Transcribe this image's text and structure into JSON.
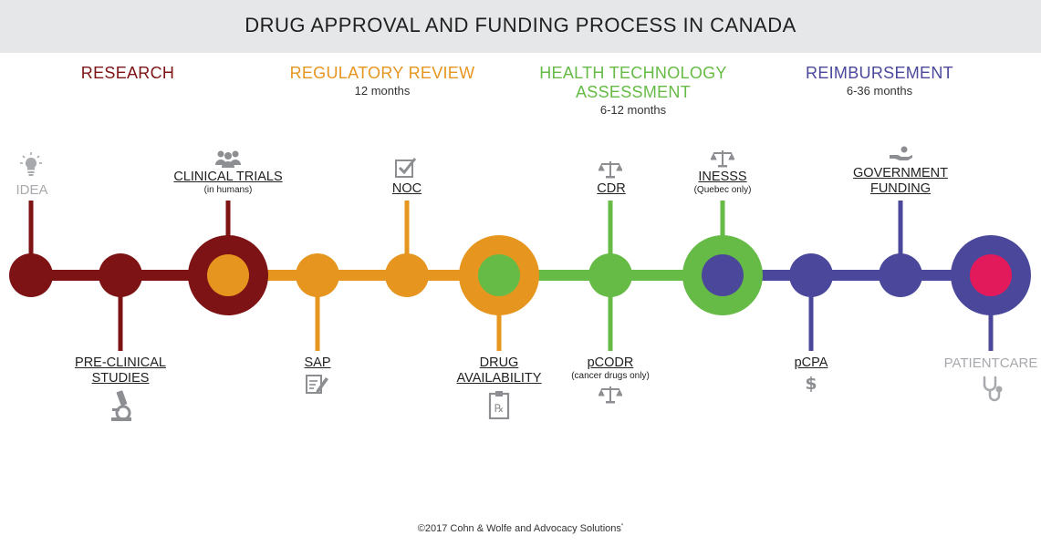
{
  "title": "DRUG APPROVAL AND FUNDING PROCESS IN CANADA",
  "phases": {
    "research": {
      "name": "RESEARCH",
      "color": "#7d1315"
    },
    "regulatory": {
      "name": "REGULATORY REVIEW",
      "duration": "12 months",
      "color": "#e6961f"
    },
    "hta": {
      "name": "HEALTH TECHNOLOGY",
      "name2": "ASSESSMENT",
      "duration": "6-12 months",
      "color": "#65bb46"
    },
    "reimbursement": {
      "name": "REIMBURSEMENT",
      "duration": "6-36 months",
      "color": "#4b489b"
    }
  },
  "steps": {
    "idea": {
      "label": "IDEA",
      "icon": "lightbulb-icon"
    },
    "preclinical": {
      "label1": "PRE-CLINICAL",
      "label2": "STUDIES",
      "icon": "microscope-icon"
    },
    "clinical": {
      "label": "CLINICAL TRIALS",
      "sub": "(in humans)",
      "icon": "people-icon"
    },
    "sap": {
      "label": "SAP",
      "icon": "form-icon"
    },
    "noc": {
      "label": "NOC",
      "icon": "checkbox-icon"
    },
    "drug": {
      "label1": "DRUG",
      "label2": "AVAILABILITY",
      "icon": "prescription-icon"
    },
    "cdr": {
      "label": "CDR",
      "icon": "scales-icon"
    },
    "pcodr": {
      "label": "pCODR",
      "sub": "(cancer drugs only)",
      "icon": "scales-icon"
    },
    "inesss": {
      "label": "INESSS",
      "sub": "(Quebec only)",
      "icon": "scales-icon"
    },
    "pcpa": {
      "label": "pCPA",
      "icon": "dollar-icon"
    },
    "gov": {
      "label1": "GOVERNMENT",
      "label2": "FUNDING",
      "icon": "hand-coin-icon"
    },
    "patient": {
      "label": "PATIENTCARE",
      "icon": "stethoscope-icon"
    }
  },
  "colors": {
    "accent_end": "#e2195a",
    "muted_text": "#a7a9ac",
    "icon_grey": "#8c8e91"
  },
  "footer": {
    "text": "©2017 Cohn & Wolfe and Advocacy Solutions",
    "mark": "*"
  }
}
